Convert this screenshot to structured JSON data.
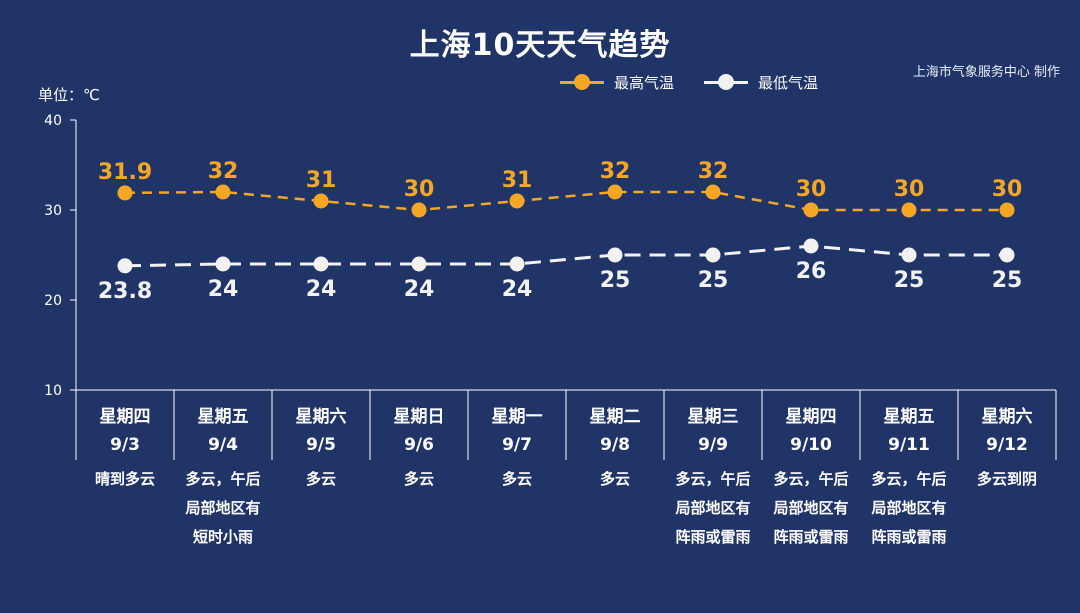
{
  "title": "上海10天天气趋势",
  "source": "上海市气象服务中心 制作",
  "unit_label": "单位：℃",
  "chart_data": {
    "type": "line",
    "title": "上海10天天气趋势",
    "ylabel": "单位：℃",
    "ylim": [
      10,
      40
    ],
    "yticks": [
      10,
      20,
      30,
      40
    ],
    "legend_position": "top-right",
    "grid": false,
    "days": [
      {
        "weekday": "星期四",
        "date": "9/3",
        "weather": [
          "晴到多云"
        ]
      },
      {
        "weekday": "星期五",
        "date": "9/4",
        "weather": [
          "多云，午后",
          "局部地区有",
          "短时小雨"
        ]
      },
      {
        "weekday": "星期六",
        "date": "9/5",
        "weather": [
          "多云"
        ]
      },
      {
        "weekday": "星期日",
        "date": "9/6",
        "weather": [
          "多云"
        ]
      },
      {
        "weekday": "星期一",
        "date": "9/7",
        "weather": [
          "多云"
        ]
      },
      {
        "weekday": "星期二",
        "date": "9/8",
        "weather": [
          "多云"
        ]
      },
      {
        "weekday": "星期三",
        "date": "9/9",
        "weather": [
          "多云，午后",
          "局部地区有",
          "阵雨或雷雨"
        ]
      },
      {
        "weekday": "星期四",
        "date": "9/10",
        "weather": [
          "多云，午后",
          "局部地区有",
          "阵雨或雷雨"
        ]
      },
      {
        "weekday": "星期五",
        "date": "9/11",
        "weather": [
          "多云，午后",
          "局部地区有",
          "阵雨或雷雨"
        ]
      },
      {
        "weekday": "星期六",
        "date": "9/12",
        "weather": [
          "多云到阴"
        ]
      }
    ],
    "series": [
      {
        "name": "最高气温",
        "color": "#f5a623",
        "values": [
          31.9,
          32,
          31,
          30,
          31,
          32,
          32,
          30,
          30,
          30
        ],
        "labels": [
          "31.9",
          "32",
          "31",
          "30",
          "31",
          "32",
          "32",
          "30",
          "30",
          "30"
        ]
      },
      {
        "name": "最低气温",
        "color": "#f2f2f2",
        "values": [
          23.8,
          24,
          24,
          24,
          24,
          25,
          25,
          26,
          25,
          25
        ],
        "labels": [
          "23.8",
          "24",
          "24",
          "24",
          "24",
          "25",
          "25",
          "26",
          "25",
          "25"
        ]
      }
    ]
  }
}
